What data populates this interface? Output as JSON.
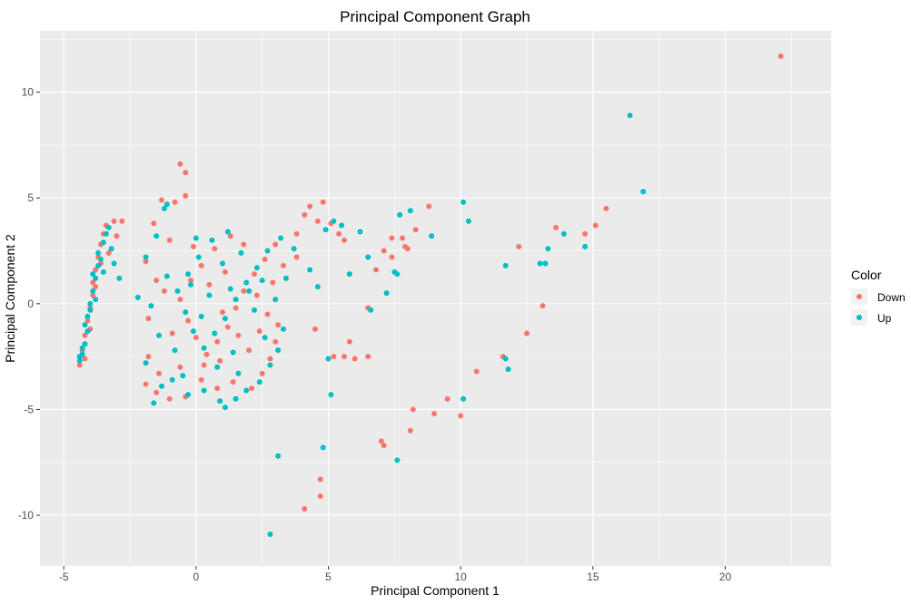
{
  "chart_data": {
    "type": "scatter",
    "title": "Principal Component Graph",
    "xlabel": "Principal Component 1",
    "ylabel": "Principal Component 2",
    "xlim": [
      -5.9,
      24.0
    ],
    "ylim": [
      -12.4,
      12.9
    ],
    "x_ticks": [
      -5,
      0,
      5,
      10,
      15,
      20
    ],
    "y_ticks": [
      -10,
      -5,
      0,
      5,
      10
    ],
    "grid": true,
    "legend_title": "Color",
    "legend_position": "right",
    "series": [
      {
        "name": "Down",
        "color": "#F8766D",
        "points": [
          [
            22.1,
            11.7
          ],
          [
            15.5,
            4.5
          ],
          [
            15.1,
            3.7
          ],
          [
            14.7,
            3.3
          ],
          [
            13.6,
            3.6
          ],
          [
            12.2,
            2.7
          ],
          [
            13.1,
            -0.1
          ],
          [
            12.5,
            -1.4
          ],
          [
            11.6,
            -2.5
          ],
          [
            10.6,
            -3.2
          ],
          [
            10.0,
            -5.3
          ],
          [
            9.5,
            -4.5
          ],
          [
            9.0,
            -5.2
          ],
          [
            8.2,
            -5.0
          ],
          [
            8.1,
            -6.0
          ],
          [
            7.0,
            -6.5
          ],
          [
            7.1,
            -6.7
          ],
          [
            4.7,
            -8.3
          ],
          [
            4.7,
            -9.1
          ],
          [
            4.1,
            -9.7
          ],
          [
            8.8,
            4.6
          ],
          [
            8.3,
            3.5
          ],
          [
            7.8,
            3.1
          ],
          [
            7.4,
            3.1
          ],
          [
            7.9,
            2.7
          ],
          [
            8.0,
            2.6
          ],
          [
            7.4,
            2.2
          ],
          [
            7.1,
            2.5
          ],
          [
            6.8,
            1.6
          ],
          [
            6.5,
            -0.2
          ],
          [
            6.5,
            -2.5
          ],
          [
            6.0,
            -2.6
          ],
          [
            5.6,
            -2.5
          ],
          [
            5.8,
            -1.8
          ],
          [
            5.2,
            -2.5
          ],
          [
            4.5,
            -1.2
          ],
          [
            4.6,
            3.9
          ],
          [
            4.8,
            4.8
          ],
          [
            4.3,
            4.6
          ],
          [
            4.1,
            4.2
          ],
          [
            5.1,
            3.8
          ],
          [
            5.4,
            3.3
          ],
          [
            5.6,
            3.0
          ],
          [
            3.8,
            3.3
          ],
          [
            -0.6,
            6.6
          ],
          [
            -0.4,
            6.2
          ],
          [
            -0.4,
            5.1
          ],
          [
            -0.8,
            4.8
          ],
          [
            -1.3,
            4.9
          ],
          [
            -1.6,
            3.8
          ],
          [
            -1.0,
            3.0
          ],
          [
            -1.9,
            2.0
          ],
          [
            -1.5,
            1.1
          ],
          [
            -1.8,
            -0.7
          ],
          [
            -1.8,
            -2.5
          ],
          [
            -1.4,
            -3.3
          ],
          [
            -1.9,
            -3.8
          ],
          [
            -1.5,
            -4.2
          ],
          [
            -1.0,
            -4.5
          ],
          [
            -0.4,
            -4.4
          ],
          [
            -0.6,
            -3.0
          ],
          [
            0.2,
            -3.6
          ],
          [
            0.8,
            -4.0
          ],
          [
            1.4,
            -3.7
          ],
          [
            2.1,
            -4.0
          ],
          [
            2.5,
            -3.3
          ],
          [
            2.8,
            -2.6
          ],
          [
            3.0,
            -1.8
          ],
          [
            3.1,
            -1.0
          ],
          [
            2.7,
            -0.5
          ],
          [
            2.3,
            0.4
          ],
          [
            2.9,
            1.0
          ],
          [
            3.3,
            1.8
          ],
          [
            3.8,
            2.2
          ],
          [
            3.0,
            2.8
          ],
          [
            2.6,
            2.1
          ],
          [
            2.2,
            1.4
          ],
          [
            1.8,
            0.6
          ],
          [
            1.5,
            -0.2
          ],
          [
            1.2,
            -1.1
          ],
          [
            0.8,
            -1.8
          ],
          [
            0.4,
            -2.4
          ],
          [
            0.0,
            -1.6
          ],
          [
            -0.3,
            -0.8
          ],
          [
            -0.6,
            0.2
          ],
          [
            -0.2,
            1.1
          ],
          [
            0.2,
            1.8
          ],
          [
            0.7,
            2.6
          ],
          [
            1.3,
            3.2
          ],
          [
            1.8,
            2.8
          ],
          [
            0.5,
            0.9
          ],
          [
            1.0,
            -0.4
          ],
          [
            1.6,
            -1.5
          ],
          [
            2.0,
            -2.2
          ],
          [
            -0.9,
            -1.4
          ],
          [
            -1.2,
            0.6
          ],
          [
            0.3,
            -2.9
          ],
          [
            1.1,
            1.5
          ],
          [
            2.4,
            -1.3
          ],
          [
            -0.1,
            2.7
          ],
          [
            0.9,
            -2.7
          ],
          [
            -4.4,
            -2.9
          ],
          [
            -4.3,
            -2.2
          ],
          [
            -4.2,
            -1.5
          ],
          [
            -4.1,
            -0.8
          ],
          [
            -4.0,
            -0.2
          ],
          [
            -3.9,
            0.4
          ],
          [
            -3.9,
            1.0
          ],
          [
            -3.8,
            1.6
          ],
          [
            -3.7,
            2.2
          ],
          [
            -3.6,
            2.8
          ],
          [
            -3.5,
            3.3
          ],
          [
            -3.4,
            3.7
          ],
          [
            -3.1,
            3.9
          ],
          [
            -2.8,
            3.9
          ],
          [
            -4.2,
            -2.6
          ],
          [
            -4.0,
            -1.2
          ],
          [
            -3.8,
            0.8
          ],
          [
            -3.6,
            1.9
          ],
          [
            -3.3,
            2.4
          ],
          [
            -3.0,
            3.2
          ]
        ]
      },
      {
        "name": "Up",
        "color": "#00BFC4",
        "points": [
          [
            16.4,
            8.9
          ],
          [
            16.9,
            5.3
          ],
          [
            14.7,
            2.7
          ],
          [
            13.9,
            3.3
          ],
          [
            13.3,
            2.6
          ],
          [
            13.2,
            1.9
          ],
          [
            13.0,
            1.9
          ],
          [
            11.7,
            1.8
          ],
          [
            11.8,
            -3.1
          ],
          [
            11.7,
            -2.6
          ],
          [
            10.1,
            -4.5
          ],
          [
            10.1,
            4.8
          ],
          [
            10.3,
            3.9
          ],
          [
            8.9,
            3.2
          ],
          [
            8.1,
            4.4
          ],
          [
            7.7,
            4.2
          ],
          [
            7.5,
            1.5
          ],
          [
            7.6,
            1.4
          ],
          [
            7.2,
            0.5
          ],
          [
            6.6,
            -0.3
          ],
          [
            7.6,
            -7.4
          ],
          [
            5.1,
            -4.3
          ],
          [
            5.0,
            -2.6
          ],
          [
            4.8,
            -6.8
          ],
          [
            3.1,
            -7.2
          ],
          [
            2.8,
            -10.9
          ],
          [
            6.2,
            3.4
          ],
          [
            6.5,
            2.2
          ],
          [
            5.8,
            1.4
          ],
          [
            5.2,
            3.9
          ],
          [
            4.9,
            3.5
          ],
          [
            4.3,
            1.6
          ],
          [
            4.6,
            0.8
          ],
          [
            5.5,
            3.7
          ],
          [
            -1.1,
            4.7
          ],
          [
            -1.2,
            4.5
          ],
          [
            -1.5,
            3.2
          ],
          [
            -1.9,
            2.2
          ],
          [
            -2.2,
            0.3
          ],
          [
            -1.7,
            -0.1
          ],
          [
            -1.4,
            -1.5
          ],
          [
            -1.9,
            -2.8
          ],
          [
            -1.6,
            -4.7
          ],
          [
            -1.3,
            -3.9
          ],
          [
            -0.9,
            -3.6
          ],
          [
            -0.3,
            -4.3
          ],
          [
            0.3,
            -4.1
          ],
          [
            0.9,
            -4.6
          ],
          [
            1.1,
            -4.9
          ],
          [
            1.5,
            -4.5
          ],
          [
            1.9,
            -4.1
          ],
          [
            2.4,
            -3.7
          ],
          [
            2.8,
            -2.9
          ],
          [
            3.1,
            -2.2
          ],
          [
            3.3,
            -1.2
          ],
          [
            3.0,
            0.2
          ],
          [
            3.4,
            1.2
          ],
          [
            3.7,
            2.6
          ],
          [
            3.2,
            3.1
          ],
          [
            2.7,
            2.5
          ],
          [
            2.3,
            1.7
          ],
          [
            1.9,
            1.0
          ],
          [
            1.5,
            0.2
          ],
          [
            1.1,
            -0.7
          ],
          [
            0.7,
            -1.4
          ],
          [
            0.3,
            -2.1
          ],
          [
            -0.1,
            -1.3
          ],
          [
            -0.4,
            -0.4
          ],
          [
            -0.7,
            0.6
          ],
          [
            -0.3,
            1.4
          ],
          [
            0.1,
            2.2
          ],
          [
            0.6,
            3.0
          ],
          [
            1.2,
            3.4
          ],
          [
            1.7,
            2.4
          ],
          [
            2.2,
            -0.3
          ],
          [
            1.4,
            -2.3
          ],
          [
            0.5,
            0.4
          ],
          [
            -0.8,
            -2.2
          ],
          [
            -1.1,
            1.3
          ],
          [
            0.0,
            3.1
          ],
          [
            2.6,
            -1.6
          ],
          [
            1.0,
            1.9
          ],
          [
            -0.5,
            -3.4
          ],
          [
            2.0,
            0.6
          ],
          [
            1.6,
            -3.3
          ],
          [
            0.2,
            -0.6
          ],
          [
            -0.2,
            0.9
          ],
          [
            1.3,
            0.7
          ],
          [
            0.8,
            -3.0
          ],
          [
            2.5,
            1.1
          ],
          [
            -4.4,
            -2.7
          ],
          [
            -4.3,
            -2.4
          ],
          [
            -4.2,
            -1.9
          ],
          [
            -4.1,
            -1.3
          ],
          [
            -4.1,
            -0.6
          ],
          [
            -4.0,
            0.0
          ],
          [
            -3.9,
            0.6
          ],
          [
            -3.8,
            1.2
          ],
          [
            -3.7,
            1.8
          ],
          [
            -3.7,
            2.4
          ],
          [
            -3.5,
            2.9
          ],
          [
            -3.4,
            3.3
          ],
          [
            -3.3,
            3.6
          ],
          [
            -4.3,
            -2.1
          ],
          [
            -4.2,
            -1.0
          ],
          [
            -4.0,
            -0.3
          ],
          [
            -3.9,
            1.4
          ],
          [
            -3.6,
            2.1
          ],
          [
            -3.2,
            2.6
          ],
          [
            -3.5,
            1.5
          ],
          [
            -3.8,
            0.2
          ],
          [
            -4.4,
            -2.5
          ],
          [
            -3.1,
            1.9
          ],
          [
            -2.9,
            1.2
          ]
        ]
      }
    ]
  }
}
